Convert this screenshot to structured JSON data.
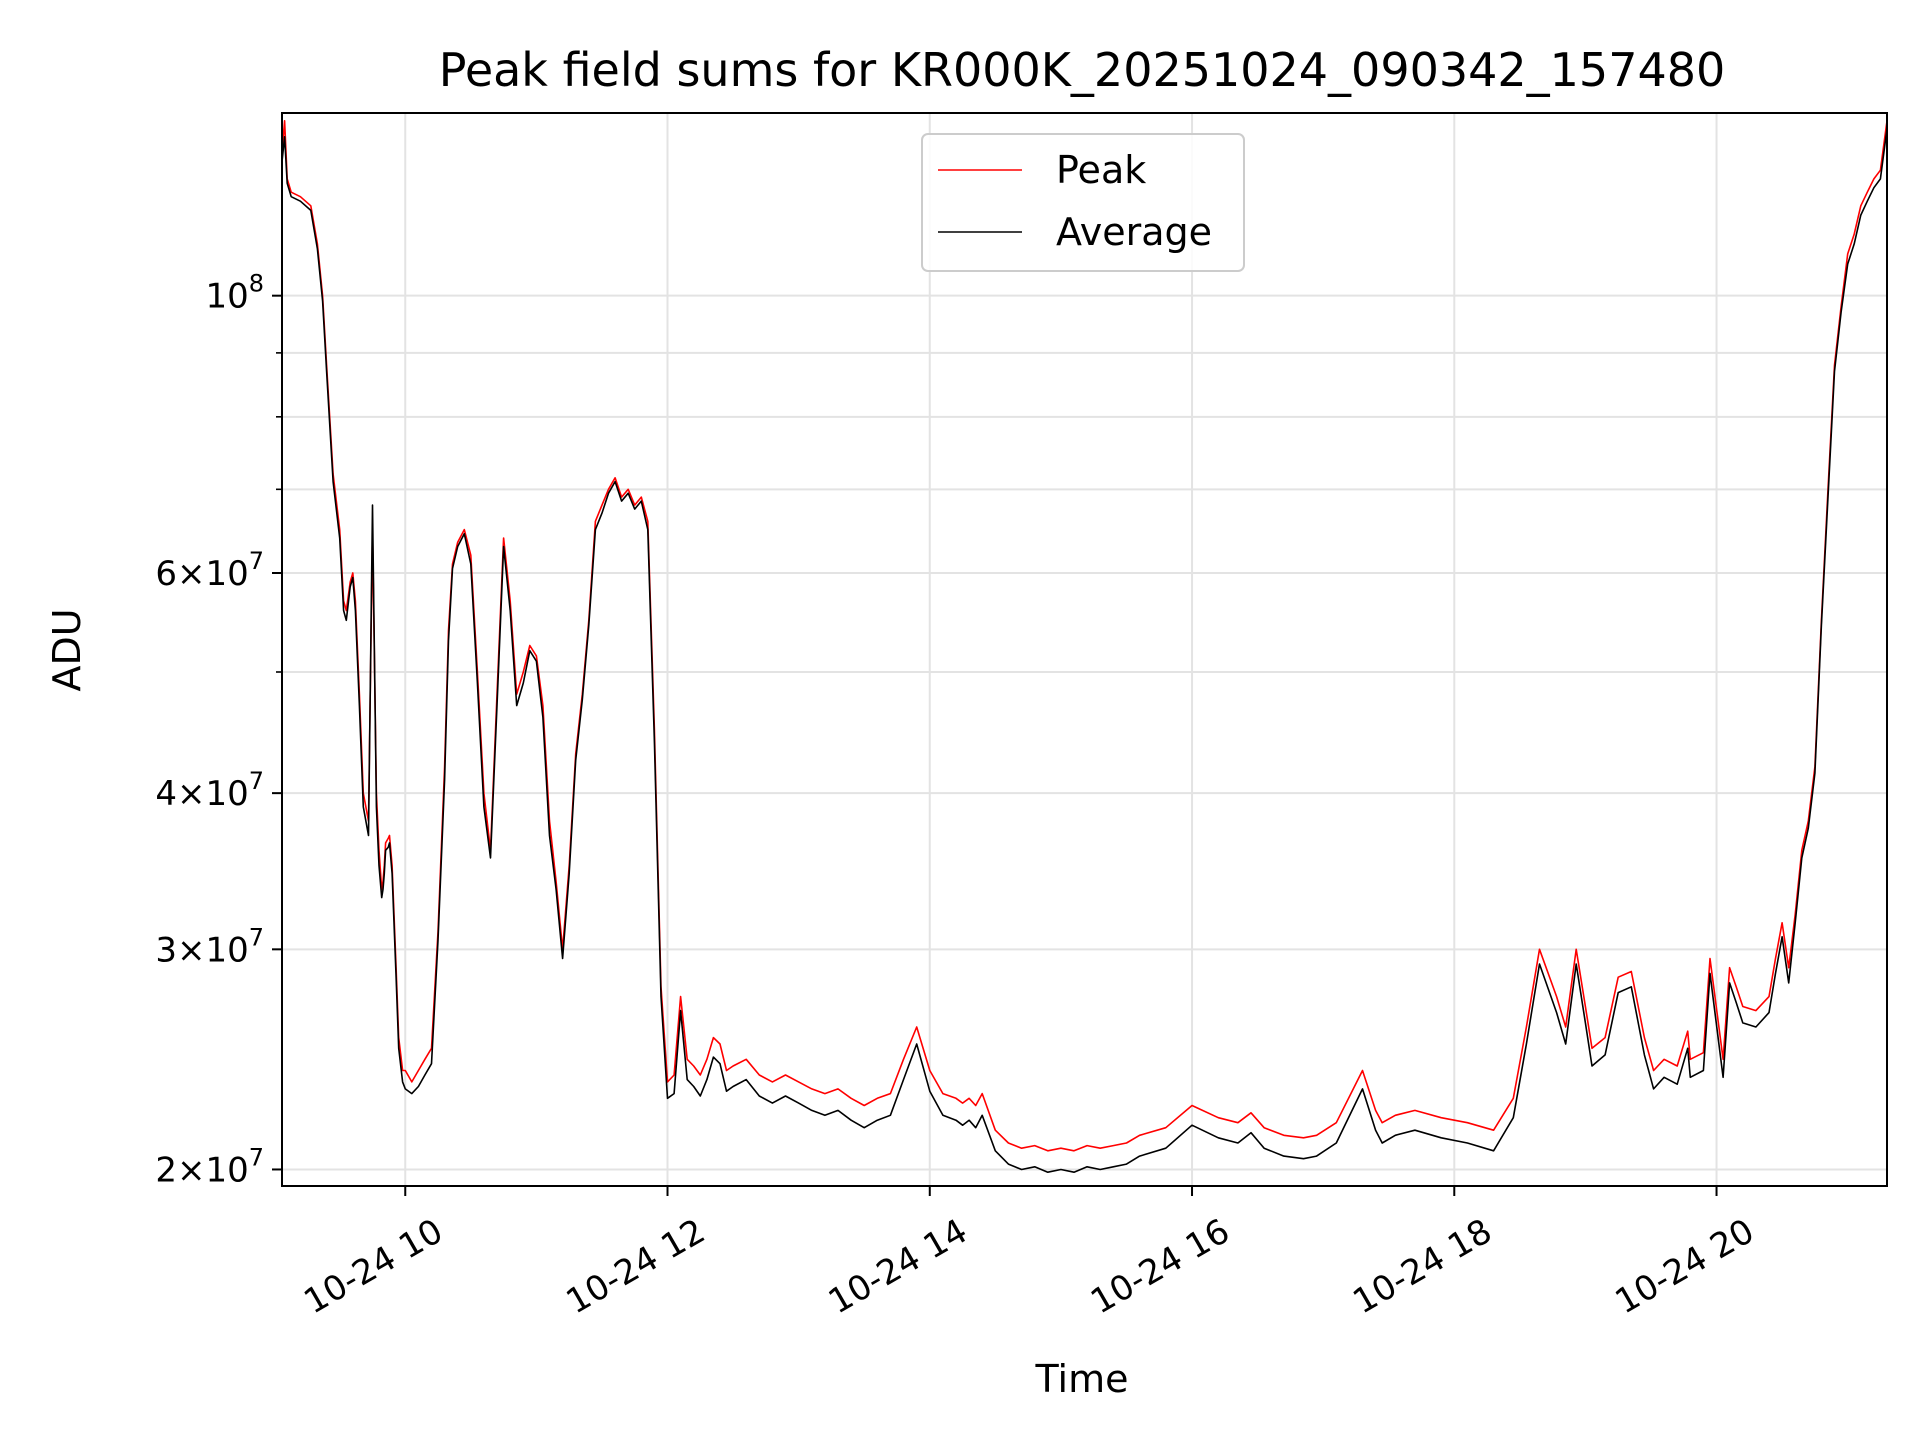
{
  "chart_data": {
    "type": "line",
    "title": "Peak field sums for KR000K_20251024_090342_157480",
    "xlabel": "Time",
    "ylabel": "ADU",
    "yscale": "log",
    "xlim": [
      9.06,
      21.3
    ],
    "ylim": [
      19400000,
      140000000
    ],
    "grid": true,
    "legend_position": "top-center",
    "x_ticks": [
      {
        "value": 10,
        "label": "10-24 10"
      },
      {
        "value": 12,
        "label": "10-24 12"
      },
      {
        "value": 14,
        "label": "10-24 14"
      },
      {
        "value": 16,
        "label": "10-24 16"
      },
      {
        "value": 18,
        "label": "10-24 18"
      },
      {
        "value": 20,
        "label": "10-24 20"
      }
    ],
    "y_ticks": [
      {
        "value": 20000000,
        "mantissa": "2",
        "base": "10",
        "exp": "7"
      },
      {
        "value": 30000000,
        "mantissa": "3",
        "base": "10",
        "exp": "7"
      },
      {
        "value": 40000000,
        "mantissa": "4",
        "base": "10",
        "exp": "7"
      },
      {
        "value": 60000000,
        "mantissa": "6",
        "base": "10",
        "exp": "7"
      },
      {
        "value": 100000000,
        "mantissa": "",
        "base": "10",
        "exp": "8"
      }
    ],
    "y_minor_ticks": [
      50000000,
      70000000,
      80000000,
      90000000
    ],
    "series": [
      {
        "name": "Peak",
        "color": "#ff0000",
        "x": [
          9.06,
          9.08,
          9.1,
          9.13,
          9.2,
          9.28,
          9.33,
          9.37,
          9.4,
          9.45,
          9.5,
          9.53,
          9.55,
          9.58,
          9.6,
          9.62,
          9.65,
          9.68,
          9.72,
          9.75,
          9.78,
          9.8,
          9.82,
          9.83,
          9.84,
          9.85,
          9.87,
          9.88,
          9.9,
          9.93,
          9.95,
          9.98,
          10.0,
          10.05,
          10.1,
          10.15,
          10.2,
          10.25,
          10.3,
          10.33,
          10.36,
          10.4,
          10.45,
          10.5,
          10.55,
          10.6,
          10.65,
          10.7,
          10.75,
          10.8,
          10.85,
          10.9,
          10.95,
          11.0,
          11.05,
          11.1,
          11.15,
          11.2,
          11.25,
          11.3,
          11.35,
          11.4,
          11.45,
          11.5,
          11.55,
          11.6,
          11.65,
          11.7,
          11.75,
          11.8,
          11.85,
          11.9,
          11.95,
          12.0,
          12.05,
          12.1,
          12.15,
          12.2,
          12.25,
          12.3,
          12.35,
          12.4,
          12.45,
          12.5,
          12.6,
          12.7,
          12.8,
          12.9,
          13.0,
          13.1,
          13.2,
          13.3,
          13.4,
          13.5,
          13.6,
          13.7,
          13.8,
          13.9,
          14.0,
          14.1,
          14.2,
          14.25,
          14.3,
          14.35,
          14.4,
          14.5,
          14.6,
          14.7,
          14.8,
          14.9,
          15.0,
          15.1,
          15.2,
          15.3,
          15.4,
          15.5,
          15.6,
          15.8,
          16.0,
          16.2,
          16.35,
          16.45,
          16.55,
          16.7,
          16.85,
          16.95,
          17.1,
          17.3,
          17.4,
          17.45,
          17.55,
          17.7,
          17.9,
          18.1,
          18.3,
          18.45,
          18.55,
          18.65,
          18.78,
          18.85,
          18.93,
          19.0,
          19.05,
          19.15,
          19.25,
          19.35,
          19.45,
          19.52,
          19.6,
          19.7,
          19.78,
          19.8,
          19.9,
          19.95,
          20.05,
          20.1,
          20.15,
          20.2,
          20.3,
          20.4,
          20.45,
          20.5,
          20.55,
          20.6,
          20.65,
          20.7,
          20.75,
          20.8,
          20.85,
          20.9,
          20.95,
          21.0,
          21.05,
          21.1,
          21.15,
          21.2,
          21.25,
          21.3
        ],
        "y": [
          130000000,
          138000000,
          124000000,
          121000000,
          120000000,
          118000000,
          110000000,
          100000000,
          88000000,
          72000000,
          65000000,
          57000000,
          56000000,
          59000000,
          60000000,
          57000000,
          48000000,
          40000000,
          38000000,
          65000000,
          40000000,
          36000000,
          33500000,
          34000000,
          35000000,
          36500000,
          36800000,
          37000000,
          35000000,
          29000000,
          25500000,
          24000000,
          24000000,
          23500000,
          24000000,
          24500000,
          25000000,
          31000000,
          42000000,
          54000000,
          61000000,
          63500000,
          65000000,
          62000000,
          50000000,
          40000000,
          36000000,
          48000000,
          64000000,
          57000000,
          48000000,
          50000000,
          52500000,
          51500000,
          47000000,
          38000000,
          34000000,
          30000000,
          35000000,
          43000000,
          48000000,
          55000000,
          66000000,
          68000000,
          70000000,
          71500000,
          69000000,
          70000000,
          68000000,
          69000000,
          66000000,
          45000000,
          28000000,
          23500000,
          23800000,
          27500000,
          24500000,
          24200000,
          23800000,
          24500000,
          25500000,
          25200000,
          24000000,
          24200000,
          24500000,
          23800000,
          23500000,
          23800000,
          23500000,
          23200000,
          23000000,
          23200000,
          22800000,
          22500000,
          22800000,
          23000000,
          24500000,
          26000000,
          24000000,
          23000000,
          22800000,
          22600000,
          22800000,
          22500000,
          23000000,
          21500000,
          21000000,
          20800000,
          20900000,
          20700000,
          20800000,
          20700000,
          20900000,
          20800000,
          20900000,
          21000000,
          21300000,
          21600000,
          22500000,
          22000000,
          21800000,
          22200000,
          21600000,
          21300000,
          21200000,
          21300000,
          21800000,
          24000000,
          22300000,
          21800000,
          22100000,
          22300000,
          22000000,
          21800000,
          21500000,
          22800000,
          26000000,
          30000000,
          27500000,
          26000000,
          30000000,
          27000000,
          25000000,
          25500000,
          28500000,
          28800000,
          25500000,
          24000000,
          24500000,
          24200000,
          25800000,
          24500000,
          24800000,
          29500000,
          24500000,
          29000000,
          28000000,
          27000000,
          26800000,
          27500000,
          29500000,
          31500000,
          29000000,
          32000000,
          36000000,
          38000000,
          42000000,
          55000000,
          70000000,
          88000000,
          98000000,
          108000000,
          112000000,
          118000000,
          121000000,
          124000000,
          126000000,
          138000000
        ]
      },
      {
        "name": "Average",
        "color": "#000000",
        "x": [
          9.06,
          9.08,
          9.1,
          9.13,
          9.2,
          9.28,
          9.33,
          9.37,
          9.4,
          9.45,
          9.5,
          9.53,
          9.55,
          9.58,
          9.6,
          9.62,
          9.65,
          9.68,
          9.72,
          9.75,
          9.78,
          9.8,
          9.82,
          9.83,
          9.84,
          9.85,
          9.87,
          9.88,
          9.9,
          9.93,
          9.95,
          9.98,
          10.0,
          10.05,
          10.1,
          10.15,
          10.2,
          10.25,
          10.3,
          10.33,
          10.36,
          10.4,
          10.45,
          10.5,
          10.55,
          10.6,
          10.65,
          10.7,
          10.75,
          10.8,
          10.85,
          10.9,
          10.95,
          11.0,
          11.05,
          11.1,
          11.15,
          11.2,
          11.25,
          11.3,
          11.35,
          11.4,
          11.45,
          11.5,
          11.55,
          11.6,
          11.65,
          11.7,
          11.75,
          11.8,
          11.85,
          11.9,
          11.95,
          12.0,
          12.05,
          12.1,
          12.15,
          12.2,
          12.25,
          12.3,
          12.35,
          12.4,
          12.45,
          12.5,
          12.6,
          12.7,
          12.8,
          12.9,
          13.0,
          13.1,
          13.2,
          13.3,
          13.4,
          13.5,
          13.6,
          13.7,
          13.8,
          13.9,
          14.0,
          14.1,
          14.2,
          14.25,
          14.3,
          14.35,
          14.4,
          14.5,
          14.6,
          14.7,
          14.8,
          14.9,
          15.0,
          15.1,
          15.2,
          15.3,
          15.4,
          15.5,
          15.6,
          15.8,
          16.0,
          16.2,
          16.35,
          16.45,
          16.55,
          16.7,
          16.85,
          16.95,
          17.1,
          17.3,
          17.4,
          17.45,
          17.55,
          17.7,
          17.9,
          18.1,
          18.3,
          18.45,
          18.55,
          18.65,
          18.78,
          18.85,
          18.93,
          19.0,
          19.05,
          19.15,
          19.25,
          19.35,
          19.45,
          19.52,
          19.6,
          19.7,
          19.78,
          19.8,
          19.9,
          19.95,
          20.05,
          20.1,
          20.15,
          20.2,
          20.3,
          20.4,
          20.45,
          20.5,
          20.55,
          20.6,
          20.65,
          20.7,
          20.75,
          20.8,
          20.85,
          20.9,
          20.95,
          21.0,
          21.05,
          21.1,
          21.15,
          21.2,
          21.25,
          21.3
        ],
        "y": [
          128000000,
          134000000,
          123000000,
          120000000,
          119000000,
          117000000,
          109000000,
          99000000,
          87000000,
          71000000,
          64000000,
          56000000,
          55000000,
          58500000,
          59500000,
          56000000,
          47000000,
          39000000,
          37000000,
          68000000,
          39000000,
          35000000,
          33000000,
          33500000,
          34500000,
          36000000,
          36200000,
          36500000,
          34500000,
          28500000,
          25000000,
          23500000,
          23200000,
          23000000,
          23300000,
          23800000,
          24300000,
          30500000,
          41000000,
          53000000,
          60500000,
          63000000,
          64500000,
          61000000,
          49000000,
          39000000,
          35500000,
          47000000,
          63000000,
          56000000,
          47000000,
          49000000,
          52000000,
          51000000,
          46000000,
          37000000,
          33500000,
          29500000,
          34500000,
          42500000,
          47500000,
          54500000,
          65000000,
          67000000,
          69500000,
          71000000,
          68500000,
          69500000,
          67500000,
          68500000,
          65000000,
          44000000,
          27500000,
          22800000,
          23000000,
          26800000,
          23600000,
          23300000,
          22900000,
          23600000,
          24600000,
          24300000,
          23100000,
          23300000,
          23600000,
          22900000,
          22600000,
          22900000,
          22600000,
          22300000,
          22100000,
          22300000,
          21900000,
          21600000,
          21900000,
          22100000,
          23600000,
          25200000,
          23100000,
          22100000,
          21900000,
          21700000,
          21900000,
          21600000,
          22100000,
          20700000,
          20200000,
          20000000,
          20100000,
          19900000,
          20000000,
          19900000,
          20100000,
          20000000,
          20100000,
          20200000,
          20500000,
          20800000,
          21700000,
          21200000,
          21000000,
          21400000,
          20800000,
          20500000,
          20400000,
          20500000,
          21000000,
          23200000,
          21500000,
          21000000,
          21300000,
          21500000,
          21200000,
          21000000,
          20700000,
          22000000,
          25200000,
          29200000,
          26700000,
          25200000,
          29200000,
          26200000,
          24200000,
          24700000,
          27700000,
          28000000,
          24700000,
          23200000,
          23700000,
          23400000,
          25000000,
          23700000,
          24000000,
          28700000,
          23700000,
          28200000,
          27200000,
          26200000,
          26000000,
          26700000,
          28700000,
          30700000,
          28200000,
          31500000,
          35500000,
          37500000,
          41500000,
          54500000,
          69000000,
          87000000,
          97000000,
          106000000,
          110000000,
          116000000,
          119000000,
          122000000,
          124000000,
          136000000
        ]
      }
    ]
  }
}
